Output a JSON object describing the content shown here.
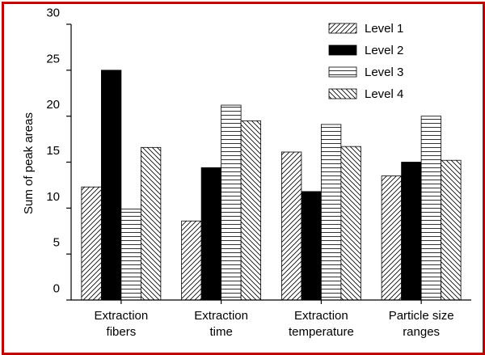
{
  "chart_data": {
    "type": "bar",
    "title": "",
    "xlabel": "",
    "ylabel": "Sum of peak areas",
    "ylim": [
      0,
      30
    ],
    "yticks": [
      0,
      5,
      10,
      15,
      20,
      25,
      30
    ],
    "grid": false,
    "legend_position": "top-right",
    "categories": [
      [
        "Extraction",
        "fibers"
      ],
      [
        "Extraction",
        "time"
      ],
      [
        "Extraction",
        "temperature"
      ],
      [
        "Particle size",
        "ranges"
      ]
    ],
    "series": [
      {
        "name": "Level 1",
        "pattern": "diagonal-right",
        "values": [
          12.3,
          8.6,
          16.1,
          13.5
        ]
      },
      {
        "name": "Level 2",
        "pattern": "solid-black",
        "values": [
          25.0,
          14.4,
          11.8,
          15.0
        ]
      },
      {
        "name": "Level 3",
        "pattern": "horizontal-lines",
        "values": [
          9.9,
          21.2,
          19.1,
          20.0
        ]
      },
      {
        "name": "Level 4",
        "pattern": "diagonal-left",
        "values": [
          16.6,
          19.5,
          16.7,
          15.2
        ]
      }
    ]
  },
  "colors": {
    "frame": "#c00000",
    "ink": "#000000"
  }
}
